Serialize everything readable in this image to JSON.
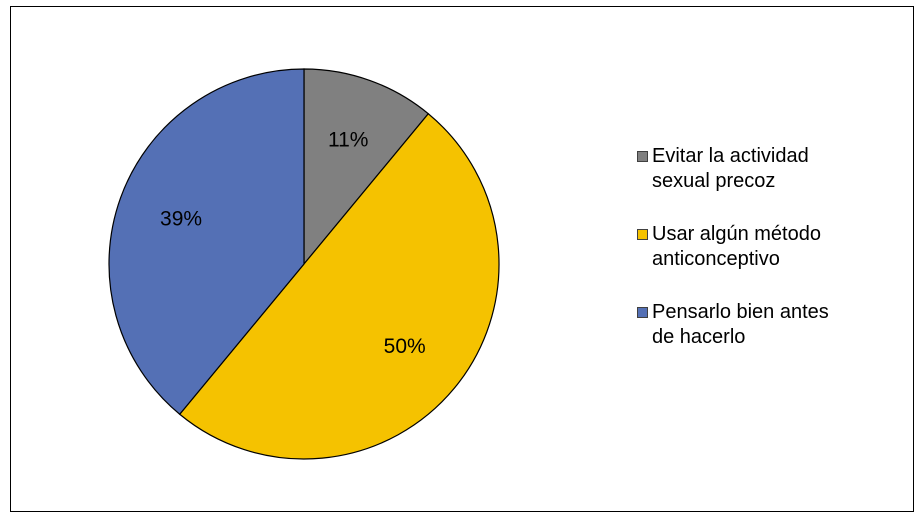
{
  "chart_data": {
    "type": "pie",
    "title": "",
    "legend_position": "right",
    "slices": [
      {
        "label": "Evitar la actividad sexual precoz",
        "value": 11,
        "display": "11%",
        "color": "#808080"
      },
      {
        "label": "Usar algún método anticonceptivo",
        "value": 50,
        "display": "50%",
        "color": "#F5C200"
      },
      {
        "label": "Pensarlo bien antes de hacerlo",
        "value": 39,
        "display": "39%",
        "color": "#5470B5"
      }
    ]
  },
  "legend": {
    "items": [
      {
        "line1": "Evitar la actividad",
        "line2": "sexual precoz"
      },
      {
        "line1": "Usar algún método",
        "line2": "anticonceptivo"
      },
      {
        "line1": "Pensarlo bien antes",
        "line2": "de hacerlo"
      }
    ]
  }
}
